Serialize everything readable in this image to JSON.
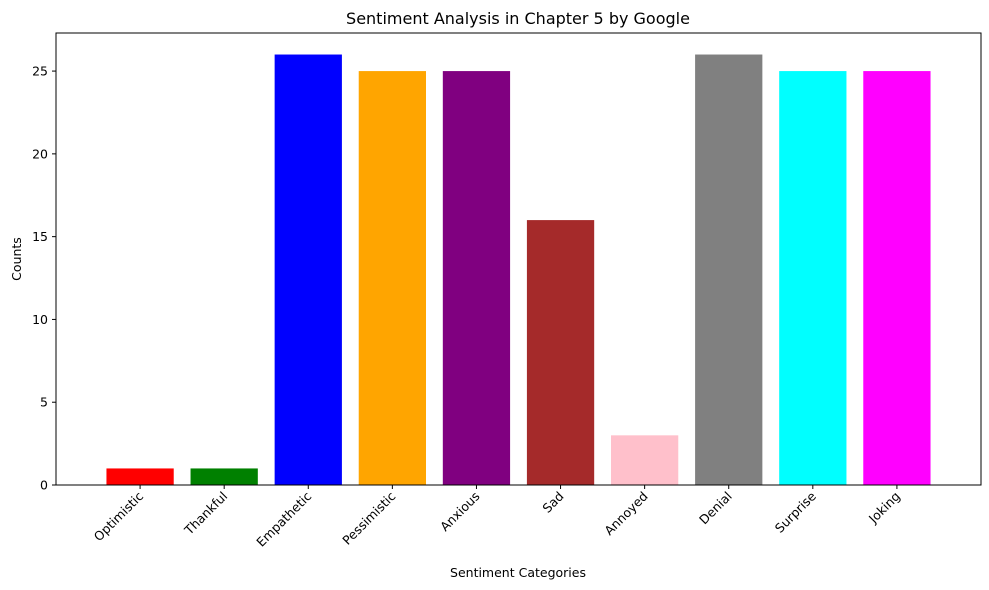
{
  "chart_data": {
    "type": "bar",
    "title": "Sentiment Analysis in Chapter 5 by Google",
    "xlabel": "Sentiment Categories",
    "ylabel": "Counts",
    "categories": [
      "Optimistic",
      "Thankful",
      "Empathetic",
      "Pessimistic",
      "Anxious",
      "Sad",
      "Annoyed",
      "Denial",
      "Surprise",
      "Joking"
    ],
    "values": [
      1,
      1,
      26,
      25,
      25,
      16,
      3,
      26,
      25,
      25
    ],
    "colors": [
      "#ff0000",
      "#008000",
      "#0000ff",
      "#ffa500",
      "#800080",
      "#a52a2a",
      "#ffc0cb",
      "#808080",
      "#00ffff",
      "#ff00ff"
    ],
    "ylim": [
      0,
      27.3
    ],
    "yticks": [
      0,
      5,
      10,
      15,
      20,
      25
    ],
    "grid": false,
    "legend": "none"
  }
}
